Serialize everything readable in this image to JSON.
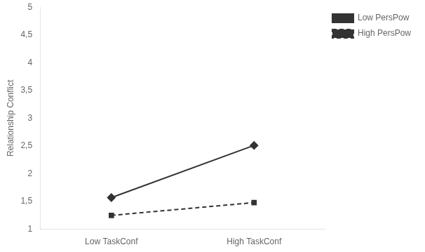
{
  "chart_data": {
    "type": "line",
    "categories": [
      "Low TaskConf",
      "High TaskConf"
    ],
    "ylabel": "Relationship Conflict",
    "series": [
      {
        "name": "Low PersPow",
        "color": "#333333",
        "values": [
          1.57,
          2.51
        ],
        "marker": "diamond",
        "line_style": "solid"
      },
      {
        "name": "High PersPow",
        "color": "#333333",
        "values": [
          1.25,
          1.48
        ],
        "marker": "square",
        "line_style": "dashed"
      }
    ],
    "ylim": [
      1,
      5
    ],
    "yticks": [
      1,
      {
        "value": 1.5,
        "label": "1,5"
      },
      2,
      {
        "value": 2.5,
        "label": "2,5"
      },
      3,
      {
        "value": 3.5,
        "label": "3,5"
      },
      4,
      {
        "value": 4.5,
        "label": "4,5"
      },
      5
    ],
    "grid": false,
    "legend": "right"
  }
}
